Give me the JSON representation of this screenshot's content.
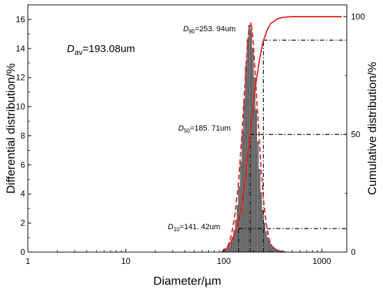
{
  "chart_data": {
    "type": "bar",
    "xlabel": "Diameter/µm",
    "ylabel_left": "Differential distribution/%",
    "ylabel_right": "Cumulative distribution/%",
    "x_scale": "log",
    "xlim": [
      1,
      1800
    ],
    "ylim_left": [
      0,
      17
    ],
    "ylim_right": [
      0,
      105
    ],
    "x_ticks": [
      1,
      10,
      100,
      1000
    ],
    "x_tick_labels": [
      "1",
      "10",
      "100",
      "1000"
    ],
    "y_left_ticks": [
      0,
      2,
      4,
      6,
      8,
      10,
      12,
      14,
      16
    ],
    "y_left_tick_labels": [
      "0",
      "2",
      "4",
      "6",
      "8",
      "10",
      "12",
      "14",
      "16"
    ],
    "y_right_ticks": [
      0,
      50,
      100
    ],
    "y_right_tick_labels": [
      "0",
      "50",
      "100"
    ],
    "annotations": {
      "dav": {
        "sym": "D",
        "sub": "av",
        "value": "=193.08um"
      },
      "d10": {
        "sym": "D",
        "sub": "10",
        "value": "=141. 42um"
      },
      "d50": {
        "sym": "D",
        "sub": "50",
        "value": "=185. 71um"
      },
      "d90": {
        "sym": "D",
        "sub": "90",
        "value": "=253. 94um"
      }
    },
    "differential_bars": {
      "x": [
        100,
        104,
        108,
        112,
        117,
        121,
        126,
        131,
        136,
        141,
        147,
        153,
        159,
        165,
        172,
        179,
        186,
        193,
        201,
        209,
        217,
        226,
        235,
        244,
        254,
        264,
        275,
        286,
        297,
        309,
        321,
        334,
        347,
        361,
        376,
        391,
        406,
        423
      ],
      "values": [
        0.1,
        0.15,
        0.25,
        0.4,
        0.65,
        1.0,
        1.5,
        2.2,
        3.2,
        4.5,
        6.2,
        8.3,
        10.5,
        12.8,
        14.6,
        15.6,
        15.3,
        14.0,
        12.0,
        9.8,
        7.6,
        5.7,
        4.1,
        2.9,
        2.0,
        1.4,
        1.0,
        0.75,
        0.55,
        0.4,
        0.3,
        0.22,
        0.16,
        0.12,
        0.09,
        0.06,
        0.04,
        0.02
      ]
    },
    "differential_fit": {
      "x": [
        95,
        110,
        120,
        130,
        140,
        150,
        160,
        170,
        180,
        190,
        200,
        210,
        225,
        240,
        255,
        270,
        290,
        310,
        340,
        380
      ],
      "values": [
        0,
        0.4,
        1.2,
        2.6,
        4.5,
        7.2,
        10.2,
        13.2,
        15.3,
        15.8,
        14.4,
        12.0,
        8.8,
        5.8,
        3.5,
        2.0,
        0.9,
        0.35,
        0.1,
        0
      ]
    },
    "cumulative": {
      "x": [
        95,
        110,
        120,
        130,
        140,
        150,
        160,
        170,
        180,
        190,
        200,
        215,
        230,
        250,
        275,
        300,
        350,
        400,
        500,
        700,
        1000,
        1600
      ],
      "values": [
        0,
        2,
        5,
        8,
        12,
        18,
        26,
        35,
        45,
        54,
        63,
        73,
        81,
        89,
        94,
        97,
        99,
        99.7,
        100,
        100,
        100,
        100
      ]
    },
    "markers": [
      {
        "x": 141.42,
        "y_percent": 10
      },
      {
        "x": 185.71,
        "y_percent": 50
      },
      {
        "x": 253.94,
        "y_percent": 90
      }
    ]
  }
}
